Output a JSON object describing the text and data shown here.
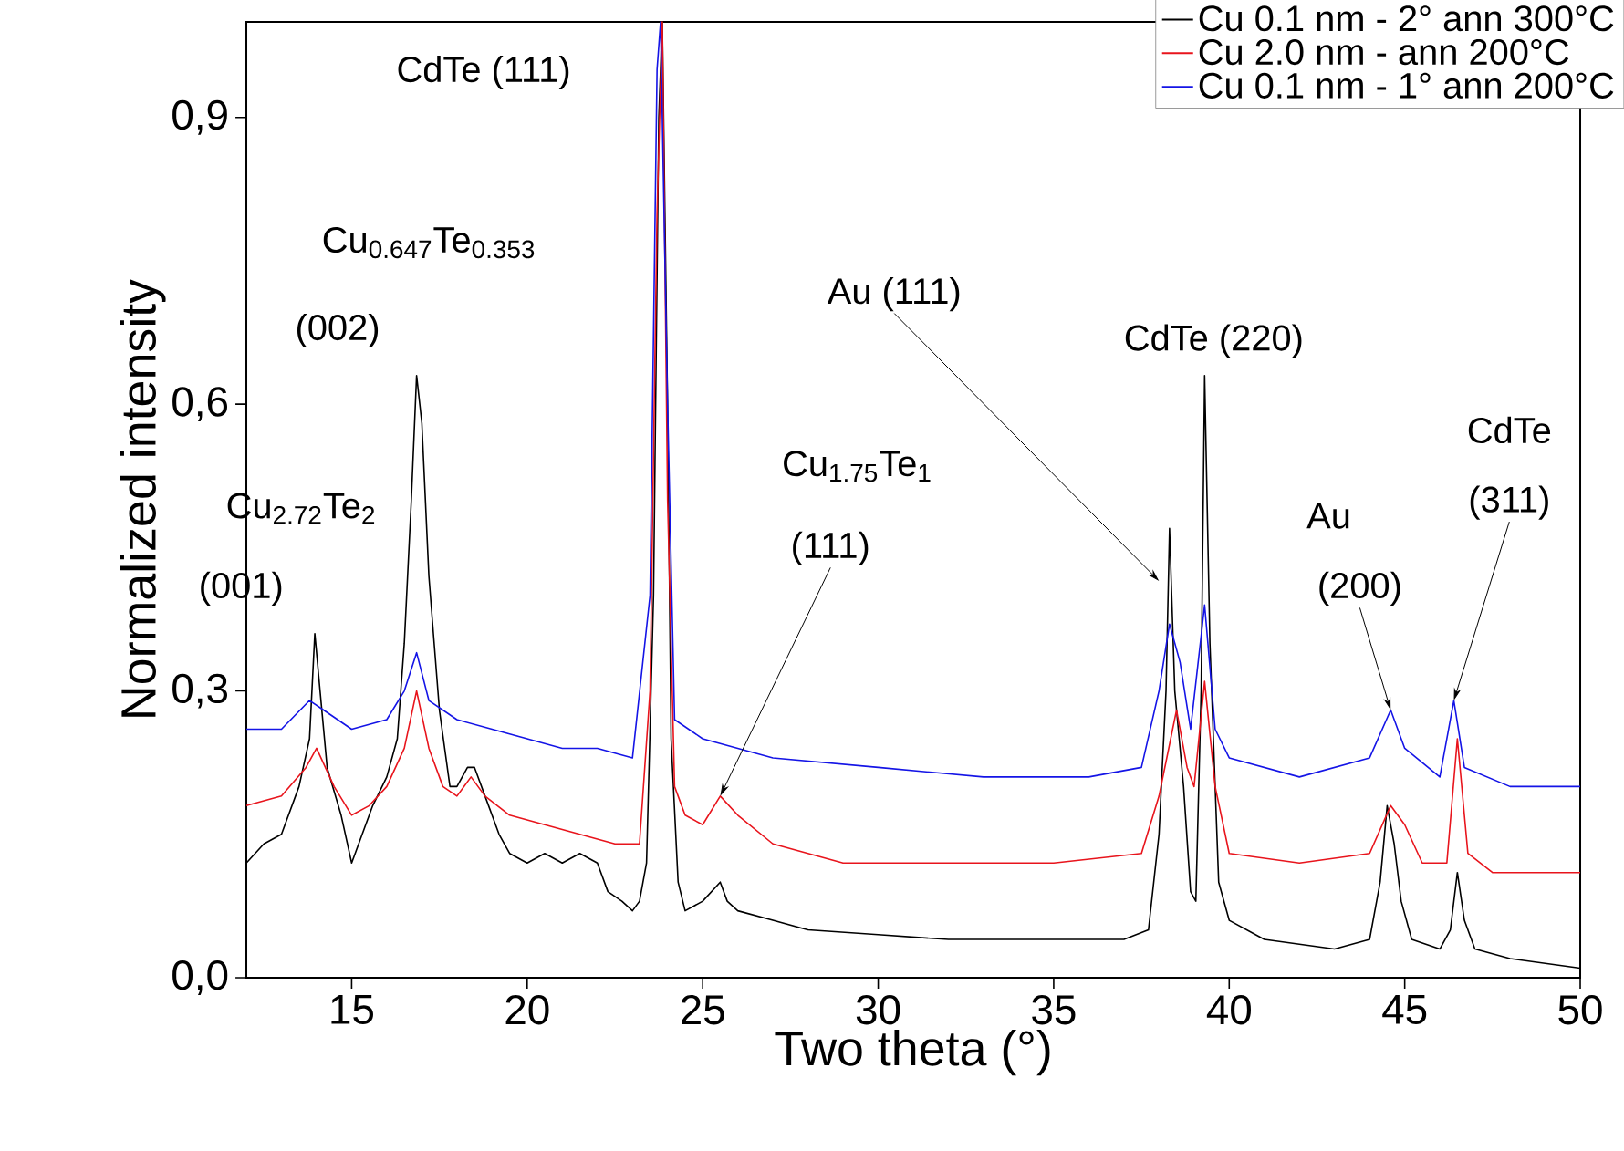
{
  "chart_data": {
    "type": "line",
    "xlabel": "Two theta (°)",
    "ylabel": "Normalized intensity",
    "xlim": [
      12,
      50
    ],
    "ylim": [
      0,
      1.0
    ],
    "xticks": [
      15,
      20,
      25,
      30,
      35,
      40,
      45,
      50
    ],
    "yticks": [
      {
        "value": 0,
        "label": "0,0"
      },
      {
        "value": 0.3,
        "label": "0,3"
      },
      {
        "value": 0.6,
        "label": "0,6"
      },
      {
        "value": 0.9,
        "label": "0,9"
      }
    ],
    "legend": "top right",
    "grid": false,
    "marker": "none",
    "line_style": "solid",
    "series": [
      {
        "name": "Cu 0.1 nm - 2° ann 300°C",
        "color": "#000000",
        "x": [
          12.0,
          12.5,
          13.0,
          13.5,
          13.8,
          13.95,
          14.1,
          14.3,
          14.7,
          15.0,
          15.3,
          15.6,
          16.0,
          16.3,
          16.5,
          16.7,
          16.85,
          17.0,
          17.2,
          17.5,
          17.8,
          18.0,
          18.3,
          18.5,
          18.8,
          19.2,
          19.5,
          20.0,
          20.5,
          21.0,
          21.5,
          22.0,
          22.3,
          22.7,
          23.0,
          23.2,
          23.4,
          23.6,
          23.75,
          23.85,
          24.0,
          24.1,
          24.3,
          24.5,
          25.0,
          25.5,
          25.7,
          26.0,
          27.0,
          28.0,
          30.0,
          32.0,
          35.0,
          37.0,
          37.7,
          38.0,
          38.2,
          38.3,
          38.45,
          38.7,
          38.9,
          39.05,
          39.2,
          39.3,
          39.45,
          39.7,
          40.0,
          41.0,
          43.0,
          44.0,
          44.3,
          44.5,
          44.7,
          44.9,
          45.2,
          46.0,
          46.3,
          46.5,
          46.7,
          47.0,
          48.0,
          50.0
        ],
        "values": [
          0.12,
          0.14,
          0.15,
          0.2,
          0.25,
          0.36,
          0.3,
          0.22,
          0.17,
          0.12,
          0.15,
          0.18,
          0.21,
          0.25,
          0.35,
          0.5,
          0.63,
          0.58,
          0.42,
          0.28,
          0.2,
          0.2,
          0.22,
          0.22,
          0.19,
          0.15,
          0.13,
          0.12,
          0.13,
          0.12,
          0.13,
          0.12,
          0.09,
          0.08,
          0.07,
          0.08,
          0.12,
          0.4,
          0.9,
          1.0,
          0.6,
          0.25,
          0.1,
          0.07,
          0.08,
          0.1,
          0.08,
          0.07,
          0.06,
          0.05,
          0.045,
          0.04,
          0.04,
          0.04,
          0.05,
          0.15,
          0.3,
          0.47,
          0.3,
          0.2,
          0.09,
          0.08,
          0.3,
          0.63,
          0.35,
          0.1,
          0.06,
          0.04,
          0.03,
          0.04,
          0.1,
          0.18,
          0.14,
          0.08,
          0.04,
          0.03,
          0.05,
          0.11,
          0.06,
          0.03,
          0.02,
          0.01
        ]
      },
      {
        "name": "Cu 2.0 nm - ann 200°C",
        "color": "#e8141c",
        "x": [
          12.0,
          13.0,
          13.7,
          14.0,
          14.5,
          15.0,
          15.5,
          16.0,
          16.5,
          16.85,
          17.2,
          17.6,
          18.0,
          18.4,
          18.8,
          19.5,
          20.5,
          21.5,
          22.5,
          23.2,
          23.5,
          23.7,
          23.85,
          24.0,
          24.2,
          24.5,
          25.0,
          25.5,
          26.0,
          27.0,
          29.0,
          32.0,
          35.0,
          37.5,
          38.0,
          38.5,
          38.8,
          39.0,
          39.3,
          39.6,
          40.0,
          42.0,
          44.0,
          44.6,
          45.0,
          45.5,
          46.2,
          46.5,
          46.8,
          47.5,
          50.0
        ],
        "values": [
          0.18,
          0.19,
          0.22,
          0.24,
          0.2,
          0.17,
          0.18,
          0.2,
          0.24,
          0.3,
          0.24,
          0.2,
          0.19,
          0.21,
          0.19,
          0.17,
          0.16,
          0.15,
          0.14,
          0.14,
          0.3,
          0.8,
          1.0,
          0.5,
          0.2,
          0.17,
          0.16,
          0.19,
          0.17,
          0.14,
          0.12,
          0.12,
          0.12,
          0.13,
          0.19,
          0.28,
          0.22,
          0.2,
          0.31,
          0.2,
          0.13,
          0.12,
          0.13,
          0.18,
          0.16,
          0.12,
          0.12,
          0.25,
          0.13,
          0.11,
          0.11
        ]
      },
      {
        "name": "Cu 0.1 nm - 1° ann 200°C",
        "color": "#1414e6",
        "x": [
          12.0,
          13.0,
          13.8,
          14.2,
          15.0,
          16.0,
          16.5,
          16.85,
          17.2,
          18.0,
          19.0,
          20.0,
          21.0,
          22.0,
          23.0,
          23.5,
          23.7,
          23.8,
          24.0,
          24.2,
          25.0,
          27.0,
          30.0,
          33.0,
          36.0,
          37.5,
          38.0,
          38.3,
          38.6,
          38.9,
          39.3,
          39.6,
          40.0,
          42.0,
          44.0,
          44.6,
          45.0,
          46.0,
          46.4,
          46.7,
          48.0,
          50.0
        ],
        "values": [
          0.26,
          0.26,
          0.29,
          0.28,
          0.26,
          0.27,
          0.3,
          0.34,
          0.29,
          0.27,
          0.26,
          0.25,
          0.24,
          0.24,
          0.23,
          0.4,
          0.95,
          1.0,
          0.6,
          0.27,
          0.25,
          0.23,
          0.22,
          0.21,
          0.21,
          0.22,
          0.3,
          0.37,
          0.33,
          0.26,
          0.39,
          0.26,
          0.23,
          0.21,
          0.23,
          0.28,
          0.24,
          0.21,
          0.29,
          0.22,
          0.2,
          0.2
        ]
      }
    ],
    "annotations": [
      "CdTe (111)",
      "Cu$_{0.647}$Te$_{0.353}$",
      "(002)",
      "Cu$_{2.72}$Te$_{2}$",
      "(001)",
      "Cu$_{1.75}$Te$_{1}$",
      {
        "text": "(111)",
        "x": 25.5,
        "y": 0.19
      },
      {
        "text": "Au (111)",
        "x": 38.0,
        "y": 0.415
      },
      "CdTe (220)",
      "Au",
      {
        "text": "(200)",
        "x": 44.6,
        "y": 0.28
      },
      "CdTe",
      {
        "text": "(311)",
        "x": 46.4,
        "y": 0.29
      }
    ]
  }
}
